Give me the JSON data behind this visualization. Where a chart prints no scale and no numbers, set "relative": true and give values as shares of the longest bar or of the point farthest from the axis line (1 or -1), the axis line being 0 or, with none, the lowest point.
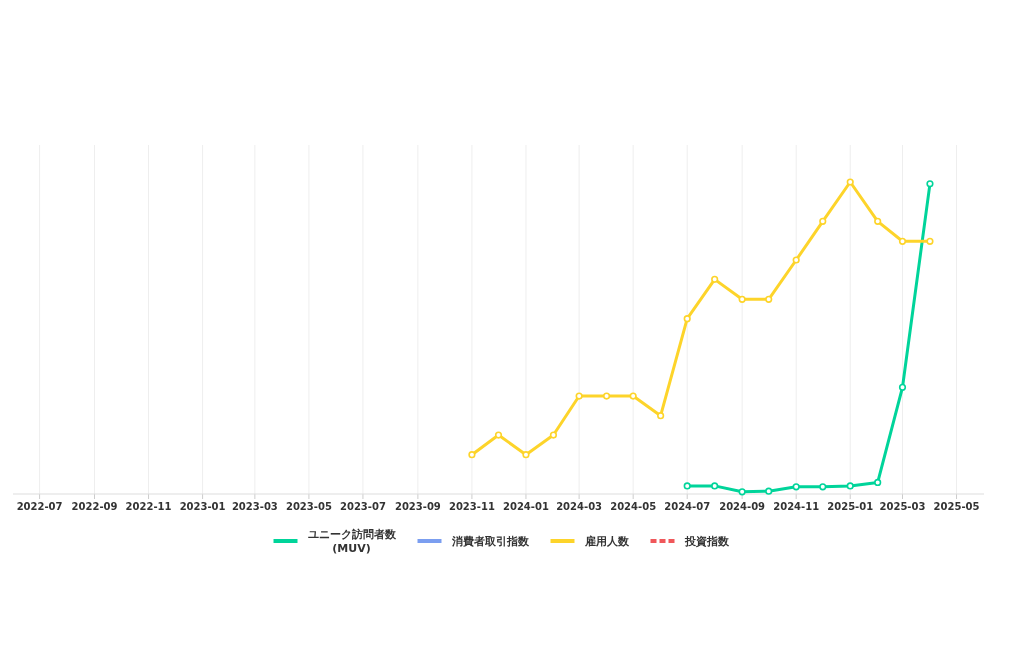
{
  "chart_data": {
    "type": "line",
    "relative": true,
    "grid": "x",
    "legend": "bottom",
    "marker": "circle",
    "xlim": [
      "2022-06-01",
      "2025-06-01"
    ],
    "xticks": [
      {
        "value": "2022-07",
        "label": "2022-07"
      },
      {
        "value": "2022-09",
        "label": "2022-09"
      },
      {
        "value": "2022-11",
        "label": "2022-11"
      },
      {
        "value": "2023-01",
        "label": "2023-01"
      },
      {
        "value": "2023-03",
        "label": "2023-03"
      },
      {
        "value": "2023-05",
        "label": "2023-05"
      },
      {
        "value": "2023-07",
        "label": "2023-07"
      },
      {
        "value": "2023-09",
        "label": "2023-09"
      },
      {
        "value": "2023-11",
        "label": "2023-11"
      },
      {
        "value": "2024-01",
        "label": "2024-01"
      },
      {
        "value": "2024-03",
        "label": "2024-03"
      },
      {
        "value": "2024-05",
        "label": "2024-05"
      },
      {
        "value": "2024-07",
        "label": "2024-07"
      },
      {
        "value": "2024-09",
        "label": "2024-09"
      },
      {
        "value": "2024-11",
        "label": "2024-11"
      },
      {
        "value": "2025-01",
        "label": "2025-01"
      },
      {
        "value": "2025-03",
        "label": "2025-03"
      },
      {
        "value": "2025-05",
        "label": "2025-05"
      }
    ],
    "series": [
      {
        "name": "ユニーク訪問者数\n(MUV)",
        "color": "#00d49a",
        "x": [
          "2024-07",
          "2024-08",
          "2024-09",
          "2024-10",
          "2024-11",
          "2024-12",
          "2025-01",
          "2025-02",
          "2025-03",
          "2025-04"
        ],
        "values": [
          0.026,
          0.026,
          0.007,
          0.009,
          0.023,
          0.023,
          0.026,
          0.037,
          0.342,
          0.994
        ]
      },
      {
        "name": "消費者取引指数",
        "color": "#7b9ef0"
      },
      {
        "name": "雇用人数",
        "color": "#fdd42a",
        "x": [
          "2023-11",
          "2023-12",
          "2024-01",
          "2024-02",
          "2024-03",
          "2024-04",
          "2024-05",
          "2024-06",
          "2024-07",
          "2024-08",
          "2024-09",
          "2024-10",
          "2024-11",
          "2024-12",
          "2025-01",
          "2025-02",
          "2025-03",
          "2025-04"
        ],
        "values": [
          0.126,
          0.189,
          0.126,
          0.189,
          0.314,
          0.314,
          0.314,
          0.251,
          0.562,
          0.688,
          0.624,
          0.624,
          0.75,
          0.874,
          1,
          0.874,
          0.81,
          0.81
        ]
      },
      {
        "name": "投資指数",
        "color": "#f0575a",
        "line_style": "dashed"
      }
    ]
  }
}
